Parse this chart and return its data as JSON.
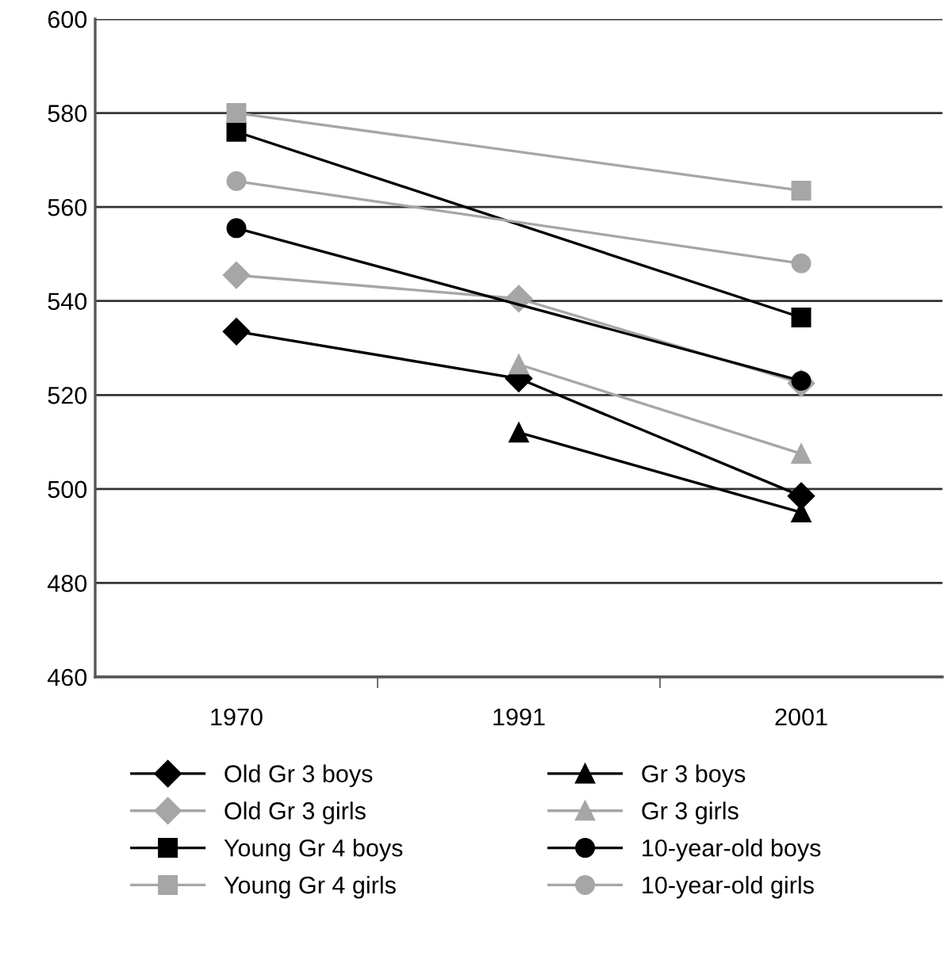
{
  "chart_data": {
    "type": "line",
    "categories": [
      "1970",
      "1991",
      "2001"
    ],
    "series": [
      {
        "name": "Old Gr 3 boys",
        "color": "#000000",
        "marker": "diamond",
        "values": [
          533.5,
          523.5,
          498.5
        ]
      },
      {
        "name": "Old Gr 3 girls",
        "color": "#a6a6a6",
        "marker": "diamond",
        "values": [
          545.5,
          540.5,
          522.5
        ]
      },
      {
        "name": "Young Gr 4 boys",
        "color": "#000000",
        "marker": "square",
        "values": [
          576,
          null,
          536.5
        ]
      },
      {
        "name": "Young Gr 4 girls",
        "color": "#a6a6a6",
        "marker": "square",
        "values": [
          580,
          null,
          563.5
        ]
      },
      {
        "name": "Gr 3 boys",
        "color": "#000000",
        "marker": "triangle",
        "values": [
          null,
          512,
          495
        ]
      },
      {
        "name": "Gr 3 girls",
        "color": "#a6a6a6",
        "marker": "triangle",
        "values": [
          null,
          526.5,
          507.5
        ]
      },
      {
        "name": "10-year-old boys",
        "color": "#000000",
        "marker": "circle",
        "values": [
          555.5,
          null,
          523
        ]
      },
      {
        "name": "10-year-old girls",
        "color": "#a6a6a6",
        "marker": "circle",
        "values": [
          565.5,
          null,
          548
        ]
      }
    ],
    "ylim": [
      460,
      600
    ],
    "yticks": [
      460,
      480,
      500,
      520,
      540,
      560,
      580,
      600
    ],
    "grid": "y",
    "legend": "bottom",
    "line_style": "solid"
  }
}
